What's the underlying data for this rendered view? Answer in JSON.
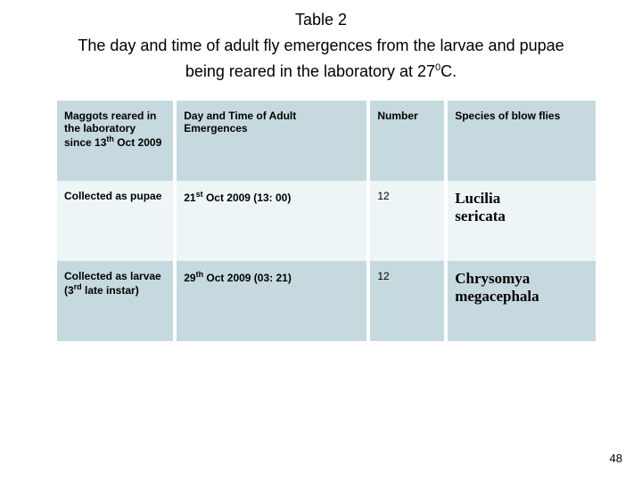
{
  "title": {
    "label": "Table 2",
    "caption_line1": "The day and time of adult fly emergences from the larvae and pupae",
    "caption_line2_prefix": "being reared in the laboratory at 27",
    "caption_line2_sup": "0",
    "caption_line2_suffix": "C."
  },
  "table": {
    "type": "table",
    "columns": [
      "col0",
      "col1",
      "col2",
      "col3"
    ],
    "col_widths_pct": [
      22,
      36,
      14,
      28
    ],
    "header_bg": "#c6d9de",
    "row_alt_bg": "#eef5f6",
    "header": {
      "c0_line1": "Maggots reared in",
      "c0_line2": "the laboratory",
      "c0_line3_prefix": "since 13",
      "c0_line3_sup": "th",
      "c0_line3_suffix": " Oct 2009",
      "c1": "Day and Time of Adult Emergences",
      "c2": "Number",
      "c3": "Species of blow flies"
    },
    "rows": [
      {
        "c0": "Collected as pupae",
        "c0_extra": "",
        "c1_prefix": "21",
        "c1_sup": "st",
        "c1_suffix": " Oct 2009 (13: 00)",
        "c2": "12",
        "c3_line1": "Lucilia",
        "c3_line2": "sericata"
      },
      {
        "c0": "Collected as larvae",
        "c0_extra_prefix": "(3",
        "c0_extra_sup": "rd",
        "c0_extra_suffix": " late instar)",
        "c1_prefix": "29",
        "c1_sup": "th",
        "c1_suffix": " Oct 2009 (03: 21)",
        "c2": "12",
        "c3_line1": "Chrysomya",
        "c3_line2": "megacephala"
      }
    ]
  },
  "page_number": "48"
}
